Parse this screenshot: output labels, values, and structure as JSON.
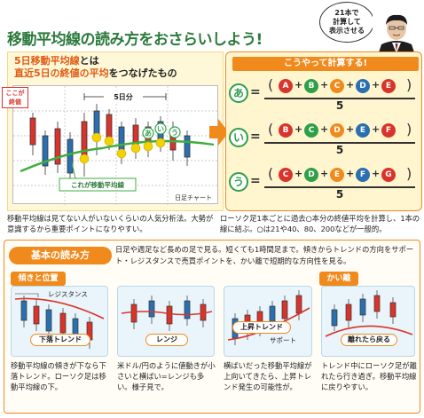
{
  "title": {
    "main": "移動平均線の読み方をおさらいしよう!"
  },
  "bubble": {
    "lines": [
      "21本で",
      "計算して",
      "表示させる"
    ]
  },
  "left_panel": {
    "heading_line1": "5日移動平均線",
    "heading_line1_suffix": "とは",
    "heading_line2": "直近5日の終値の平均",
    "heading_line2_suffix": "をつなげたもの",
    "label_koko": "ここが",
    "label_owarine": "終値",
    "label_5days": "5日分",
    "label_ma": "これが移動平均線",
    "label_daily": "日足チャート",
    "point_a": "あ",
    "point_i": "い",
    "point_u": "う",
    "caption": "移動平均線は見てない人がいないくらいの人気分析法。大勢が意識するから重要ポイントになりやすい。"
  },
  "calc": {
    "header": "こうやって計算する!",
    "rows": [
      {
        "label": "あ",
        "letters": [
          "A",
          "B",
          "C",
          "D",
          "E"
        ],
        "den": "5"
      },
      {
        "label": "い",
        "letters": [
          "B",
          "C",
          "D",
          "E",
          "F"
        ],
        "den": "5"
      },
      {
        "label": "う",
        "letters": [
          "C",
          "D",
          "E",
          "F",
          "G"
        ],
        "den": "5"
      }
    ],
    "eq": "=",
    "plus": "+",
    "caption": "ローソク足1本ごとに過去○本分の終値平均を計算し、1本の線に結ぶ。○は21や40、80、200などが一般的。"
  },
  "basics": {
    "heading": "基本の読み方",
    "desc": "日足や週足など長めの足で見る。短くても1時間足まで。傾きからトレンドの方向をサポート・レジスタンスで売買ポイントを、かい離で短期的な方向性を見る。",
    "sections": [
      {
        "head": "傾きと位置",
        "tag": "下落トレンド",
        "label": "レジスタンス",
        "caption": "移動平均線の傾きが下なら下落トレンド。ローソク足は移動平均線の下。"
      },
      {
        "head": "",
        "tag": "レンジ",
        "label": "",
        "caption": "米ドル/円のように値動きが小さいと横ばい=レンジも多い。様子見で。"
      },
      {
        "head": "",
        "tag": "上昇トレンド",
        "label": "サポート",
        "caption": "横ばいだった移動平均線が上向いてきたら、上昇トレンド発生の可能性が。"
      },
      {
        "head": "かい離",
        "tag": "離れたら戻る",
        "label": "",
        "caption": "トレンド中にローソク足が離れたら行き過ぎ。移動平均線に戻りやすい。"
      }
    ]
  },
  "colors": {
    "orange": "#f08a1c",
    "green": "#2f9f4a",
    "blue": "#2a6fb0",
    "red": "#d9342b",
    "yellow": "#f2d200",
    "title_green": "#2c7a3c"
  }
}
